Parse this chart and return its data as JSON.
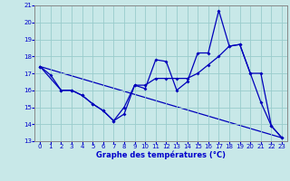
{
  "title": "Graphe des températures (°C)",
  "xlim": [
    -0.5,
    23.5
  ],
  "ylim": [
    13,
    21
  ],
  "yticks": [
    13,
    14,
    15,
    16,
    17,
    18,
    19,
    20,
    21
  ],
  "xticks": [
    0,
    1,
    2,
    3,
    4,
    5,
    6,
    7,
    8,
    9,
    10,
    11,
    12,
    13,
    14,
    15,
    16,
    17,
    18,
    19,
    20,
    21,
    22,
    23
  ],
  "bg_color": "#c8e8e8",
  "line_color": "#0000bb",
  "grid_color": "#99cccc",
  "label_color": "#0000cc",
  "series_zigzag": {
    "x": [
      0,
      1,
      2,
      3,
      4,
      5,
      6,
      7,
      8,
      9,
      10,
      11,
      12,
      13,
      14,
      15,
      16,
      17,
      18,
      19,
      20,
      21,
      22,
      23
    ],
    "y": [
      17.4,
      16.9,
      16.0,
      16.0,
      15.7,
      15.2,
      14.8,
      14.2,
      14.6,
      16.3,
      16.1,
      17.8,
      17.7,
      16.0,
      16.5,
      18.2,
      18.2,
      20.7,
      18.6,
      18.7,
      17.0,
      15.3,
      13.9,
      13.2
    ]
  },
  "series_smooth": {
    "x": [
      0,
      2,
      3,
      4,
      5,
      6,
      7,
      8,
      9,
      10,
      11,
      12,
      13,
      14,
      15,
      16,
      17,
      18,
      19,
      20,
      21,
      22,
      23
    ],
    "y": [
      17.4,
      16.0,
      16.0,
      15.7,
      15.2,
      14.8,
      14.2,
      15.0,
      16.3,
      16.3,
      16.7,
      16.7,
      16.7,
      16.7,
      17.0,
      17.5,
      18.0,
      18.6,
      18.7,
      17.0,
      17.0,
      13.9,
      13.2
    ]
  },
  "series_trend": {
    "x": [
      0,
      23
    ],
    "y": [
      17.4,
      13.2
    ]
  }
}
